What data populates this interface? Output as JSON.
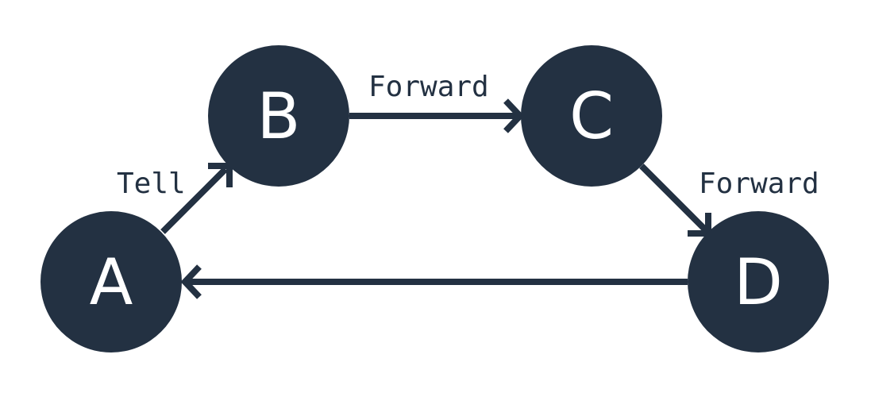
{
  "colors": {
    "node_fill": "#233142",
    "node_text": "#ffffff",
    "edge": "#233142",
    "background": "#ffffff"
  },
  "nodes": [
    {
      "id": "A",
      "label": "A"
    },
    {
      "id": "B",
      "label": "B"
    },
    {
      "id": "C",
      "label": "C"
    },
    {
      "id": "D",
      "label": "D"
    }
  ],
  "edges": [
    {
      "from": "A",
      "to": "B",
      "label": "Tell"
    },
    {
      "from": "B",
      "to": "C",
      "label": "Forward"
    },
    {
      "from": "C",
      "to": "D",
      "label": "Forward"
    },
    {
      "from": "D",
      "to": "A",
      "label": ""
    }
  ]
}
